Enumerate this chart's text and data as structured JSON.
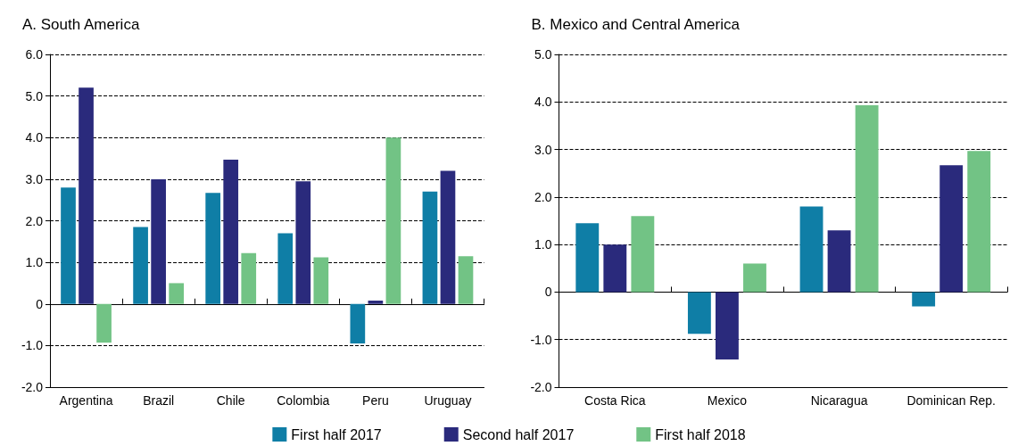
{
  "chart_data": [
    {
      "type": "bar",
      "title": "A. South America",
      "categories": [
        "Argentina",
        "Brazil",
        "Chile",
        "Colombia",
        "Peru",
        "Uruguay"
      ],
      "series": [
        {
          "name": "First half 2017",
          "color": "#0f7ea6",
          "values": [
            2.8,
            1.85,
            2.67,
            1.7,
            -0.95,
            2.7
          ]
        },
        {
          "name": "Second half 2017",
          "color": "#2a2a7c",
          "values": [
            5.2,
            3.0,
            3.47,
            2.95,
            0.08,
            3.2
          ]
        },
        {
          "name": "First half 2018",
          "color": "#72c385",
          "values": [
            -0.93,
            0.5,
            1.22,
            1.12,
            4.0,
            1.15
          ]
        }
      ],
      "ylim": [
        -2,
        6
      ],
      "yticks": [
        {
          "value": -2,
          "label": "-2.0"
        },
        {
          "value": -1,
          "label": "-1.0"
        },
        0,
        {
          "value": 1,
          "label": "1.0"
        },
        {
          "value": 2,
          "label": "2.0"
        },
        {
          "value": 3,
          "label": "3.0"
        },
        {
          "value": 4,
          "label": "4.0"
        },
        {
          "value": 5,
          "label": "5.0"
        },
        {
          "value": 6,
          "label": "6.0"
        }
      ],
      "grid": "y",
      "legend": "bottom"
    },
    {
      "type": "bar",
      "title": "B. Mexico and Central America",
      "categories": [
        "Costa Rica",
        "Mexico",
        "Nicaragua",
        "Dominican Rep."
      ],
      "series": [
        {
          "name": "First half 2017",
          "color": "#0f7ea6",
          "values": [
            1.45,
            -0.88,
            1.8,
            -0.3
          ]
        },
        {
          "name": "Second half 2017",
          "color": "#2a2a7c",
          "values": [
            1.0,
            -1.42,
            1.3,
            2.67
          ]
        },
        {
          "name": "First half 2018",
          "color": "#72c385",
          "values": [
            1.6,
            0.6,
            3.93,
            2.97
          ]
        }
      ],
      "ylim": [
        -2,
        5
      ],
      "yticks": [
        {
          "value": -2,
          "label": "-2.0"
        },
        {
          "value": -1,
          "label": "-1.0"
        },
        0,
        {
          "value": 1,
          "label": "1.0"
        },
        {
          "value": 2,
          "label": "2.0"
        },
        {
          "value": 3,
          "label": "3.0"
        },
        {
          "value": 4,
          "label": "4.0"
        },
        {
          "value": 5,
          "label": "5.0"
        }
      ],
      "grid": "y"
    }
  ]
}
